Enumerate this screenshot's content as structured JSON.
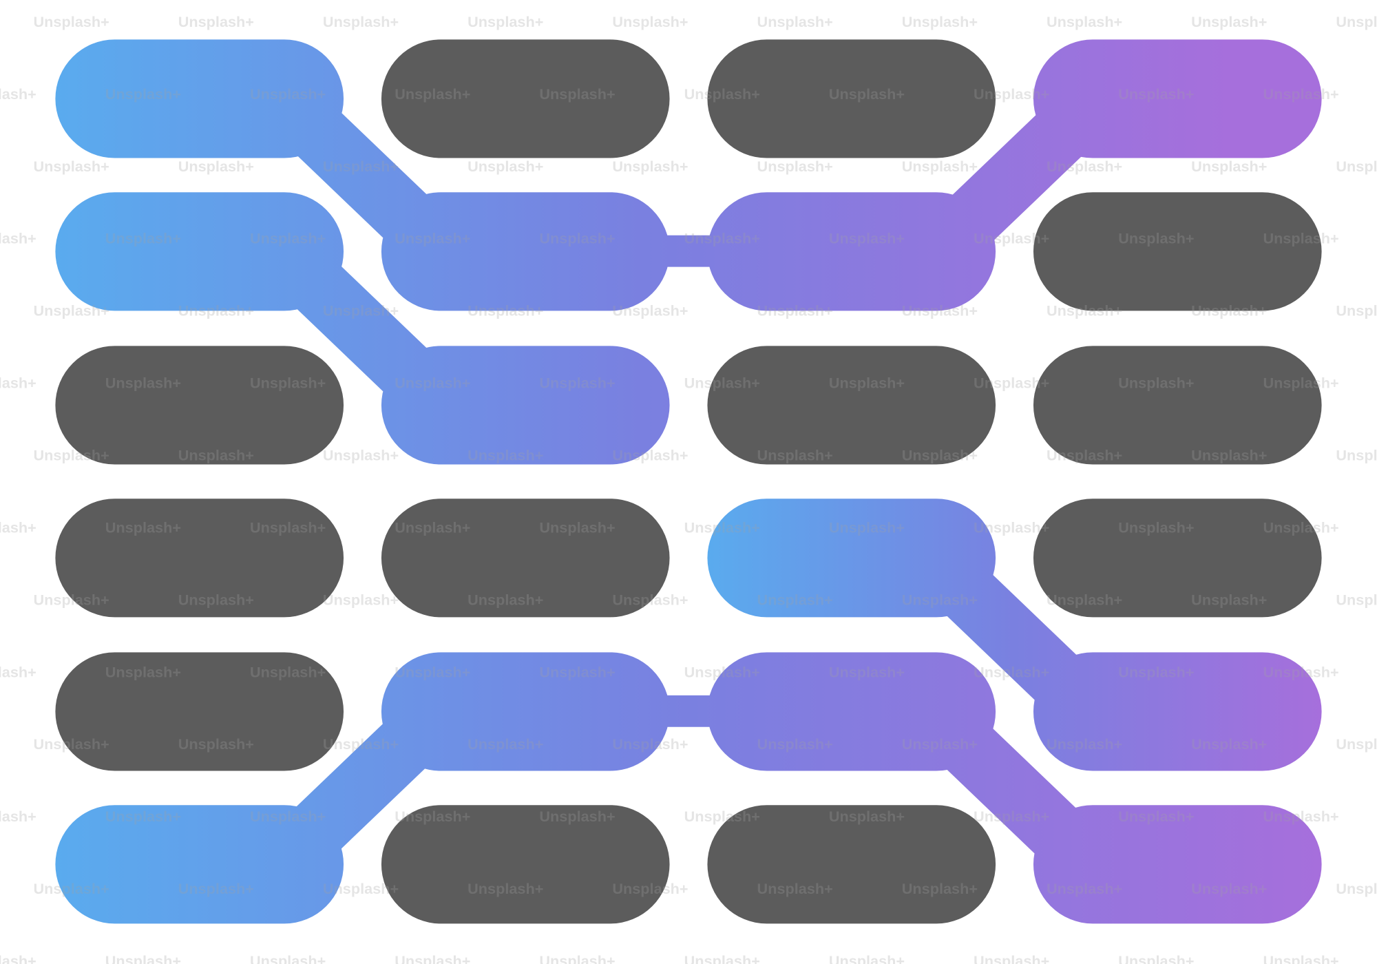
{
  "watermark": "Unsplash+"
}
